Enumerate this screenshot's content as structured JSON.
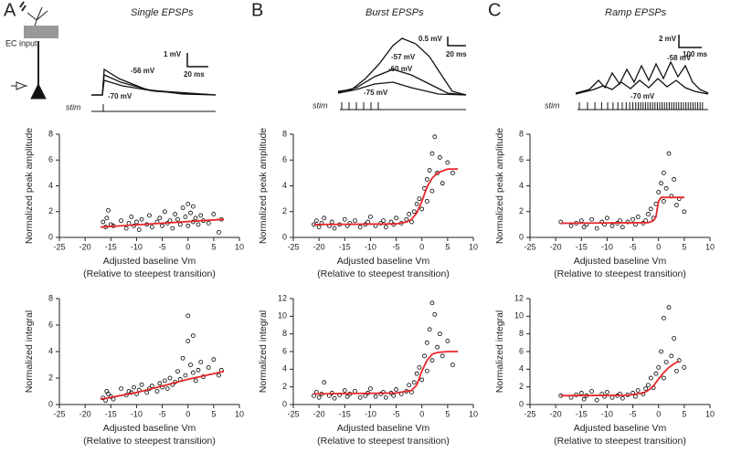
{
  "panels": [
    {
      "label": "A",
      "title": "Single EPSPs",
      "scale_y": "1 mV",
      "scale_x": "20 ms",
      "annotations": [
        "-56 mV",
        "-70 mV"
      ],
      "stim": "stim",
      "input": "EC input"
    },
    {
      "label": "B",
      "title": "Burst EPSPs",
      "scale_y": "0.5 mV",
      "scale_x": "20 ms",
      "annotations": [
        "-57 mV",
        "-60 mV",
        "-75 mV"
      ],
      "stim": "stim"
    },
    {
      "label": "C",
      "title": "Ramp EPSPs",
      "scale_y": "2 mV",
      "scale_x": "100 ms",
      "annotations": [
        "-58 mV",
        "-70 mV"
      ],
      "stim": "stim"
    }
  ],
  "chart_data": [
    {
      "type": "scatter",
      "ylabel": "Normalized peak amplitude",
      "xlabel": [
        "Adjusted baseline Vm",
        "(Relative to steepest transition)"
      ],
      "xlim": [
        -25,
        10
      ],
      "xticks": [
        -25,
        -20,
        -15,
        -10,
        -5,
        0,
        5,
        10
      ],
      "ylim": [
        0,
        8
      ],
      "yticks": [
        0,
        2,
        4,
        6,
        8
      ],
      "series": [
        {
          "color": "#000000",
          "marker": "open-circle",
          "x": [
            -16.5,
            -16,
            -15.8,
            -15.5,
            -15,
            -14.5,
            -13,
            -12,
            -11.5,
            -11,
            -10.5,
            -10,
            -9.5,
            -9,
            -8,
            -7.5,
            -7,
            -6,
            -5.5,
            -5,
            -4.5,
            -4,
            -3.5,
            -3,
            -2.5,
            -2,
            -1.5,
            -1,
            -0.5,
            0,
            0,
            0.5,
            1,
            1,
            1.5,
            2,
            2.5,
            3,
            4,
            5,
            6,
            6.5
          ],
          "values": [
            1.2,
            0.8,
            1.5,
            2.1,
            1.0,
            0.9,
            1.3,
            0.7,
            1.1,
            1.6,
            0.9,
            1.2,
            0.6,
            1.4,
            1.0,
            1.7,
            0.8,
            1.2,
            1.5,
            0.9,
            2.0,
            1.1,
            1.3,
            0.7,
            1.8,
            1.4,
            1.0,
            2.3,
            1.6,
            0.9,
            2.6,
            1.9,
            1.2,
            2.4,
            1.5,
            1.0,
            1.7,
            1.3,
            1.1,
            1.8,
            0.4,
            1.4
          ]
        },
        {
          "color": "#e8262a",
          "marker": "line",
          "x": [
            -17,
            7
          ],
          "values": [
            0.8,
            1.4
          ]
        }
      ]
    },
    {
      "type": "scatter",
      "ylabel": "Normalized integral",
      "xlabel": [
        "Adjusted baseline Vm",
        "(Relative to steepest transition)"
      ],
      "xlim": [
        -25,
        10
      ],
      "xticks": [
        -25,
        -20,
        -15,
        -10,
        -5,
        0,
        5,
        10
      ],
      "ylim": [
        0,
        8
      ],
      "yticks": [
        0,
        2,
        4,
        6,
        8
      ],
      "series": [
        {
          "color": "#000000",
          "marker": "open-circle",
          "x": [
            -16.5,
            -16,
            -15.8,
            -15.5,
            -15,
            -14.5,
            -13,
            -12,
            -11.5,
            -11,
            -10.5,
            -10,
            -9.5,
            -9,
            -8,
            -7.5,
            -7,
            -6,
            -5.5,
            -5,
            -4.5,
            -4,
            -3.5,
            -3,
            -2.5,
            -2,
            -1.5,
            -1,
            -0.5,
            0,
            0,
            0.5,
            1,
            1,
            1.5,
            2,
            2.5,
            3,
            4,
            5,
            6,
            6.5
          ],
          "values": [
            0.5,
            0.3,
            1.0,
            0.8,
            0.6,
            0.4,
            1.2,
            0.7,
            1.0,
            0.9,
            1.3,
            0.8,
            1.1,
            1.5,
            0.9,
            1.2,
            1.4,
            1.0,
            1.6,
            1.3,
            1.8,
            1.2,
            2.0,
            1.5,
            1.7,
            2.5,
            1.9,
            3.5,
            2.2,
            4.8,
            6.7,
            3.0,
            2.4,
            5.2,
            1.8,
            2.6,
            3.2,
            2.1,
            2.8,
            3.4,
            2.2,
            2.6
          ]
        },
        {
          "color": "#e8262a",
          "marker": "line",
          "x": [
            -17,
            -10,
            -5,
            0,
            7
          ],
          "values": [
            0.4,
            0.9,
            1.4,
            1.9,
            2.5
          ]
        }
      ]
    },
    {
      "type": "scatter",
      "ylabel": "Normalized peak amplitude",
      "xlabel": [
        "Adjusted baseline Vm",
        "(Relative to steepest transition)"
      ],
      "xlim": [
        -25,
        10
      ],
      "xticks": [
        -25,
        -20,
        -15,
        -10,
        -5,
        0,
        5,
        10
      ],
      "ylim": [
        0,
        8
      ],
      "yticks": [
        0,
        2,
        4,
        6,
        8
      ],
      "series": [
        {
          "color": "#000000",
          "marker": "open-circle",
          "x": [
            -21,
            -20.5,
            -20,
            -19.5,
            -19,
            -18,
            -17.5,
            -17,
            -16,
            -15,
            -14.5,
            -14,
            -13,
            -12,
            -11,
            -10.5,
            -10,
            -9,
            -8,
            -7.5,
            -7,
            -6,
            -5.5,
            -5,
            -4,
            -3,
            -2.5,
            -2,
            -1.5,
            -1,
            -0.5,
            0,
            0.5,
            1,
            1,
            1.5,
            2,
            2,
            2.5,
            3,
            3.5,
            4,
            5,
            6
          ],
          "values": [
            1.0,
            1.3,
            0.8,
            1.1,
            1.5,
            0.9,
            1.2,
            0.7,
            1.0,
            1.4,
            0.9,
            1.1,
            1.3,
            0.8,
            1.0,
            1.2,
            1.6,
            0.9,
            1.1,
            1.3,
            0.8,
            1.2,
            1.0,
            1.5,
            1.1,
            1.4,
            1.8,
            1.2,
            2.0,
            2.6,
            3.0,
            2.2,
            3.8,
            4.5,
            2.8,
            5.2,
            6.5,
            3.6,
            7.8,
            5.0,
            6.2,
            4.2,
            5.8,
            5.0
          ]
        },
        {
          "color": "#e8262a",
          "marker": "line",
          "x": [
            -21,
            -5,
            -3,
            -2,
            -1,
            0,
            1,
            2,
            3,
            5,
            7
          ],
          "values": [
            1,
            1.05,
            1.2,
            1.4,
            1.9,
            2.8,
            3.9,
            4.6,
            5,
            5.3,
            5.3
          ]
        }
      ]
    },
    {
      "type": "scatter",
      "ylabel": "Normalized integral",
      "xlabel": [
        "Adjusted baseline Vm",
        "(Relative to steepest transition)"
      ],
      "xlim": [
        -25,
        10
      ],
      "xticks": [
        -25,
        -20,
        -15,
        -10,
        -5,
        0,
        5,
        10
      ],
      "ylim": [
        0,
        12
      ],
      "yticks": [
        0,
        2,
        4,
        6,
        8,
        10,
        12
      ],
      "series": [
        {
          "color": "#000000",
          "marker": "open-circle",
          "x": [
            -21,
            -20.5,
            -20,
            -19.5,
            -19,
            -18,
            -17.5,
            -17,
            -16,
            -15,
            -14.5,
            -14,
            -13,
            -12,
            -11,
            -10.5,
            -10,
            -9,
            -8,
            -7.5,
            -7,
            -6,
            -5.5,
            -5,
            -4,
            -3,
            -2.5,
            -2,
            -1.5,
            -1,
            -0.5,
            0,
            0.5,
            1,
            1,
            1.5,
            2,
            2,
            2.5,
            3,
            3.5,
            4,
            5,
            6
          ],
          "values": [
            1.0,
            1.4,
            0.8,
            1.2,
            2.5,
            1.0,
            1.3,
            0.7,
            1.1,
            1.6,
            0.9,
            1.2,
            1.5,
            0.8,
            1.0,
            1.3,
            1.8,
            0.9,
            1.2,
            1.4,
            0.8,
            1.3,
            1.0,
            1.7,
            1.2,
            1.5,
            2.2,
            1.4,
            2.5,
            3.5,
            4.2,
            2.8,
            5.5,
            7.0,
            3.8,
            8.5,
            11.5,
            5.0,
            10.2,
            6.5,
            8.0,
            5.5,
            7.2,
            4.5
          ]
        },
        {
          "color": "#e8262a",
          "marker": "line",
          "x": [
            -21,
            -5,
            -2,
            -1,
            0,
            1,
            2,
            3,
            5,
            7
          ],
          "values": [
            1.2,
            1.3,
            1.6,
            2.2,
            3.8,
            5,
            5.7,
            5.9,
            6,
            6
          ]
        }
      ]
    },
    {
      "type": "scatter",
      "ylabel": "Normalized peak amplitude",
      "xlabel": [
        "Adjusted baseline Vm",
        "(Relative to steepest transition)"
      ],
      "xlim": [
        -25,
        10
      ],
      "xticks": [
        -25,
        -20,
        -15,
        -10,
        -5,
        0,
        5,
        10
      ],
      "ylim": [
        0,
        8
      ],
      "yticks": [
        0,
        2,
        4,
        6,
        8
      ],
      "series": [
        {
          "color": "#000000",
          "marker": "open-circle",
          "x": [
            -19,
            -17,
            -16,
            -15,
            -14.5,
            -14,
            -13,
            -12,
            -11,
            -10.5,
            -10,
            -9,
            -8,
            -7.5,
            -7,
            -6,
            -5,
            -4.5,
            -4,
            -3,
            -2.5,
            -2,
            -1.5,
            -1,
            -0.5,
            0,
            0.5,
            1,
            1,
            1.5,
            2,
            2.5,
            3,
            3.5,
            4,
            5
          ],
          "values": [
            1.2,
            0.9,
            1.1,
            1.3,
            0.8,
            1.0,
            1.4,
            0.7,
            1.2,
            1.0,
            1.5,
            0.9,
            1.1,
            1.3,
            0.8,
            1.2,
            1.4,
            1.0,
            1.6,
            1.1,
            1.3,
            1.8,
            2.2,
            1.5,
            2.6,
            3.5,
            4.2,
            2.8,
            5.0,
            3.8,
            6.5,
            3.2,
            4.5,
            2.5,
            3.0,
            2.0
          ]
        },
        {
          "color": "#e8262a",
          "marker": "line",
          "x": [
            -19,
            -2,
            -1,
            -0.5,
            0,
            0.5,
            5
          ],
          "values": [
            1.1,
            1.15,
            1.3,
            1.6,
            2.8,
            3.1,
            3.1
          ]
        }
      ]
    },
    {
      "type": "scatter",
      "ylabel": "Normalized integral",
      "xlabel": [
        "Adjusted baseline Vm",
        "(Relative to steepest transition)"
      ],
      "xlim": [
        -25,
        10
      ],
      "xticks": [
        -25,
        -20,
        -15,
        -10,
        -5,
        0,
        5,
        10
      ],
      "ylim": [
        0,
        12
      ],
      "yticks": [
        0,
        2,
        4,
        6,
        8,
        10,
        12
      ],
      "series": [
        {
          "color": "#000000",
          "marker": "open-circle",
          "x": [
            -19,
            -17,
            -16,
            -15,
            -14.5,
            -14,
            -13,
            -12,
            -11,
            -10.5,
            -10,
            -9,
            -8,
            -7.5,
            -7,
            -6,
            -5,
            -4.5,
            -4,
            -3,
            -2.5,
            -2,
            -1.5,
            -1,
            -0.5,
            0,
            0.5,
            1,
            1,
            1.5,
            2,
            2.5,
            3,
            3.5,
            4,
            5
          ],
          "values": [
            1.0,
            0.8,
            1.1,
            1.3,
            0.6,
            1.0,
            1.5,
            0.5,
            1.2,
            0.9,
            1.4,
            0.8,
            1.0,
            1.2,
            0.7,
            1.1,
            1.3,
            0.9,
            1.6,
            1.2,
            1.8,
            2.2,
            3.0,
            1.9,
            3.5,
            4.2,
            6.0,
            3.0,
            9.8,
            4.8,
            11.0,
            5.5,
            7.5,
            3.8,
            5.0,
            4.2
          ]
        },
        {
          "color": "#e8262a",
          "marker": "line",
          "x": [
            -19,
            -6,
            -3,
            -2,
            -1,
            0,
            1,
            2,
            3,
            4
          ],
          "values": [
            1,
            1.05,
            1.3,
            1.6,
            2.1,
            2.9,
            3.6,
            4.2,
            4.6,
            4.9
          ]
        }
      ]
    }
  ]
}
